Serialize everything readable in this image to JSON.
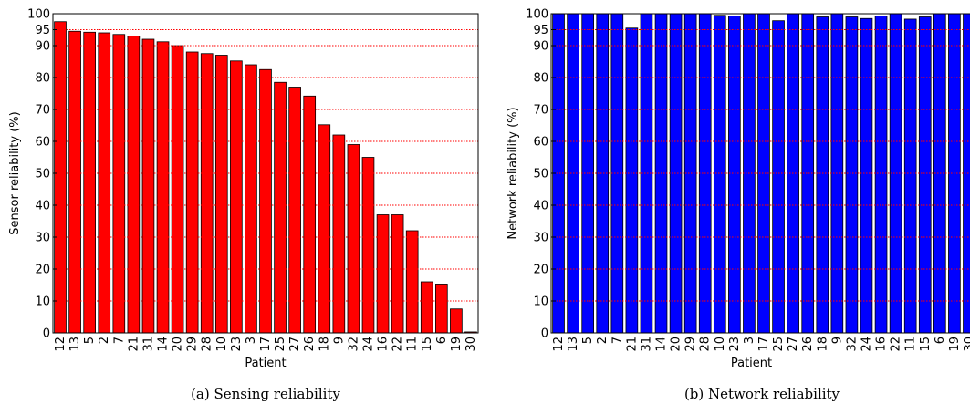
{
  "chart_data": [
    {
      "type": "bar",
      "caption": "(a) Sensing reliability",
      "xlabel": "Patient",
      "ylabel": "Sensor reliability (%)",
      "categories": [
        "12",
        "13",
        "5",
        "2",
        "7",
        "21",
        "31",
        "14",
        "20",
        "29",
        "28",
        "10",
        "23",
        "3",
        "17",
        "25",
        "27",
        "26",
        "18",
        "9",
        "32",
        "24",
        "16",
        "22",
        "11",
        "15",
        "6",
        "19",
        "30"
      ],
      "values": [
        97.5,
        94.5,
        94.2,
        94,
        93.5,
        93,
        92,
        91.2,
        90,
        88,
        87.5,
        87,
        85.2,
        84,
        82.5,
        78.5,
        77,
        74.2,
        65.2,
        62,
        59,
        55,
        37,
        37,
        32,
        16,
        15.3,
        7.5,
        0.3
      ],
      "color": "#ff0000",
      "ylim": [
        0,
        100
      ],
      "yticks": [
        0,
        10,
        20,
        30,
        40,
        50,
        60,
        70,
        80,
        90,
        95,
        100
      ],
      "grid": true
    },
    {
      "type": "bar",
      "caption": "(b) Network reliability",
      "xlabel": "Patient",
      "ylabel": "Network reliability (%)",
      "categories": [
        "12",
        "13",
        "5",
        "2",
        "7",
        "21",
        "31",
        "14",
        "20",
        "29",
        "28",
        "10",
        "23",
        "3",
        "17",
        "25",
        "27",
        "26",
        "18",
        "9",
        "32",
        "24",
        "16",
        "22",
        "11",
        "15",
        "6",
        "19",
        "30"
      ],
      "values": [
        100,
        100,
        100,
        100,
        100,
        95.5,
        100,
        100,
        100,
        100,
        100,
        99.5,
        99.3,
        100,
        100,
        97.8,
        100,
        100,
        99,
        100,
        99,
        98.5,
        99.3,
        100,
        98.3,
        99,
        100,
        100,
        100
      ],
      "color": "#0000ff",
      "ylim": [
        0,
        100
      ],
      "yticks": [
        0,
        10,
        20,
        30,
        40,
        50,
        60,
        70,
        80,
        90,
        95,
        100
      ],
      "grid": true
    }
  ]
}
